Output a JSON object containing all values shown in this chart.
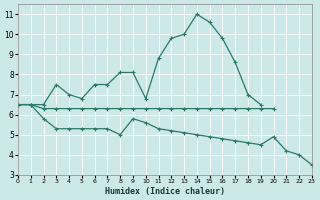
{
  "xlabel": "Humidex (Indice chaleur)",
  "bg_color": "#cce8e8",
  "grid_color": "#ffffff",
  "line_color": "#2a7a6a",
  "xlim": [
    0,
    23
  ],
  "ylim": [
    3,
    11.5
  ],
  "yticks": [
    3,
    4,
    5,
    6,
    7,
    8,
    9,
    10,
    11
  ],
  "xticks": [
    0,
    1,
    2,
    3,
    4,
    5,
    6,
    7,
    8,
    9,
    10,
    11,
    12,
    13,
    14,
    15,
    16,
    17,
    18,
    19,
    20,
    21,
    22,
    23
  ],
  "line1_x": [
    0,
    1,
    2,
    3,
    4,
    5,
    6,
    7,
    8,
    9,
    10,
    11,
    12,
    13,
    14,
    15,
    16,
    17,
    18,
    19
  ],
  "line1_y": [
    6.5,
    6.5,
    6.5,
    7.5,
    7.0,
    6.8,
    7.5,
    7.5,
    8.1,
    8.1,
    6.8,
    8.8,
    9.8,
    10.0,
    11.0,
    10.6,
    9.8,
    8.6,
    7.0,
    6.5
  ],
  "line2_x": [
    0,
    1,
    2,
    3,
    4,
    5,
    6,
    7,
    8,
    9,
    10,
    11,
    12,
    13,
    14,
    15,
    16,
    17,
    18,
    19,
    20
  ],
  "line2_y": [
    6.5,
    6.5,
    6.3,
    6.3,
    6.3,
    6.3,
    6.3,
    6.3,
    6.3,
    6.3,
    6.3,
    6.3,
    6.3,
    6.3,
    6.3,
    6.3,
    6.3,
    6.3,
    6.3,
    6.3,
    6.3
  ],
  "line3_x": [
    0,
    1,
    2,
    3,
    4,
    5,
    6,
    7,
    8,
    9,
    10,
    11,
    12,
    13,
    14,
    15,
    16,
    17,
    18,
    19,
    20,
    21,
    22,
    23
  ],
  "line3_y": [
    6.5,
    6.5,
    5.8,
    5.3,
    5.3,
    5.3,
    5.3,
    5.3,
    5.0,
    5.8,
    5.6,
    5.3,
    5.2,
    5.1,
    5.0,
    4.9,
    4.8,
    4.7,
    4.6,
    4.5,
    4.9,
    4.2,
    4.0,
    3.5
  ]
}
